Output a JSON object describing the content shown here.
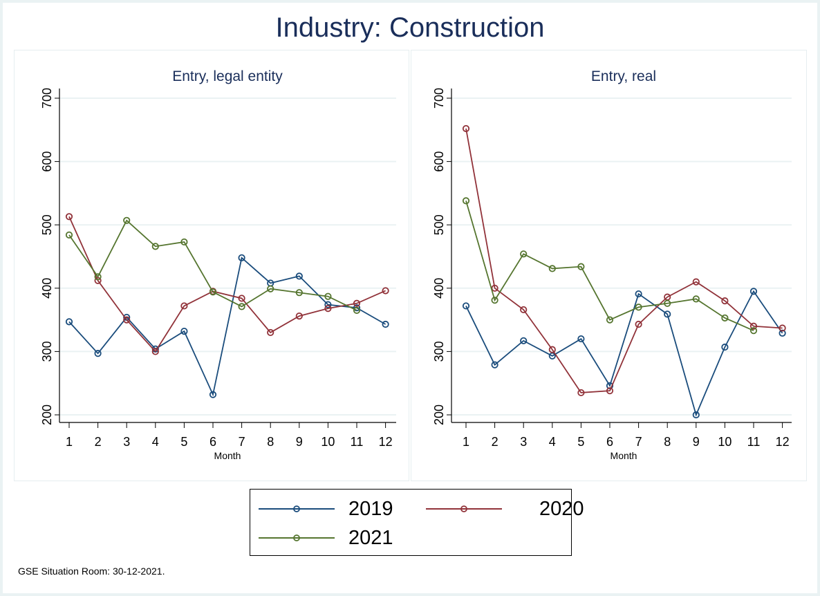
{
  "title": "Industry: Construction",
  "footnote": "GSE Situation Room: 30-12-2021.",
  "colors": {
    "2019": "#1a4c7c",
    "2020": "#913239",
    "2021": "#55752f",
    "title": "#1a2e5a",
    "grid": "#eaf2f3"
  },
  "legend": [
    {
      "label": "2019",
      "series": "2019"
    },
    {
      "label": "2020",
      "series": "2020"
    },
    {
      "label": "2021",
      "series": "2021"
    }
  ],
  "chart_data": [
    {
      "type": "line",
      "title": "Entry, legal entity",
      "xlabel": "Month",
      "ylabel": "",
      "x": [
        1,
        2,
        3,
        4,
        5,
        6,
        7,
        8,
        9,
        10,
        11,
        12
      ],
      "xticks": [
        "1",
        "2",
        "3",
        "4",
        "5",
        "6",
        "7",
        "8",
        "9",
        "10",
        "11",
        "12"
      ],
      "yticks": [
        "200",
        "300",
        "400",
        "500",
        "600",
        "700"
      ],
      "ylim": [
        200,
        700
      ],
      "grid": true,
      "legend": "bottom",
      "series": [
        {
          "name": "2019",
          "values": [
            347,
            297,
            354,
            304,
            332,
            232,
            448,
            408,
            419,
            374,
            369,
            343
          ]
        },
        {
          "name": "2020",
          "values": [
            513,
            412,
            350,
            300,
            372,
            395,
            384,
            330,
            356,
            368,
            376,
            396
          ]
        },
        {
          "name": "2021",
          "values": [
            484,
            418,
            507,
            466,
            473,
            394,
            371,
            399,
            393,
            387,
            365
          ]
        }
      ]
    },
    {
      "type": "line",
      "title": "Entry, real",
      "xlabel": "Month",
      "ylabel": "",
      "x": [
        1,
        2,
        3,
        4,
        5,
        6,
        7,
        8,
        9,
        10,
        11,
        12
      ],
      "xticks": [
        "1",
        "2",
        "3",
        "4",
        "5",
        "6",
        "7",
        "8",
        "9",
        "10",
        "11",
        "12"
      ],
      "yticks": [
        "200",
        "300",
        "400",
        "500",
        "600",
        "700"
      ],
      "ylim": [
        200,
        700
      ],
      "grid": true,
      "legend": "bottom",
      "series": [
        {
          "name": "2019",
          "values": [
            372,
            279,
            317,
            293,
            320,
            246,
            391,
            359,
            200,
            307,
            395,
            329
          ]
        },
        {
          "name": "2020",
          "values": [
            652,
            400,
            366,
            303,
            235,
            238,
            343,
            386,
            410,
            380,
            340,
            337
          ]
        },
        {
          "name": "2021",
          "values": [
            538,
            381,
            454,
            431,
            434,
            350,
            370,
            376,
            383,
            353,
            333
          ]
        }
      ]
    }
  ]
}
